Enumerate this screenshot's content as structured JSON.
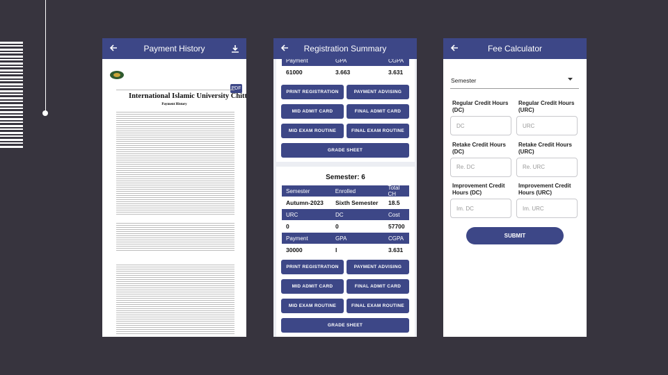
{
  "left_screen": {
    "title": "Payment History",
    "pdf_badge": "PDF",
    "document": {
      "university": "International Islamic University Chittagong",
      "heading": "Payment History"
    }
  },
  "middle_screen": {
    "title": "Registration Summary",
    "previous_semester": {
      "header": [
        "Payment",
        "GPA",
        "CGPA"
      ],
      "values": [
        61000,
        3.663,
        3.631
      ]
    },
    "buttons": [
      "PRINT REGISTRATION",
      "PAYMENT ADVISING",
      "MID ADMIT CARD",
      "FINAL ADMIT CARD",
      "MID EXAM ROUTINE",
      "FINAL EXAM ROUTINE",
      "GRADE SHEET"
    ],
    "semester_card": {
      "title": "Semester: 6",
      "rows": [
        [
          "Semester",
          "Enrolled",
          "Total CH"
        ],
        [
          "Autumn-2023",
          "Sixth Semester",
          18.5
        ],
        [
          "URC",
          "DC",
          "Cost"
        ],
        [
          0,
          0,
          57700
        ],
        [
          "Payment",
          "GPA",
          "CGPA"
        ],
        [
          30000,
          "I",
          3.631
        ]
      ]
    }
  },
  "right_screen": {
    "title": "Fee Calculator",
    "semester_dropdown": "Semester",
    "fields": [
      {
        "label": "Regular Credit Hours (DC)",
        "placeholder": "DC"
      },
      {
        "label": "Regular Credit Hours (URC)",
        "placeholder": "URC"
      },
      {
        "label": "Retake Credit Hours (DC)",
        "placeholder": "Re. DC"
      },
      {
        "label": "Retake Credit Hours (URC)",
        "placeholder": "Re. URC"
      },
      {
        "label": "Improvement Credit Hours (DC)",
        "placeholder": "Im. DC"
      },
      {
        "label": "Improvement Credit Hours (URC)",
        "placeholder": "Im. URC"
      }
    ],
    "submit": "SUBMIT"
  }
}
